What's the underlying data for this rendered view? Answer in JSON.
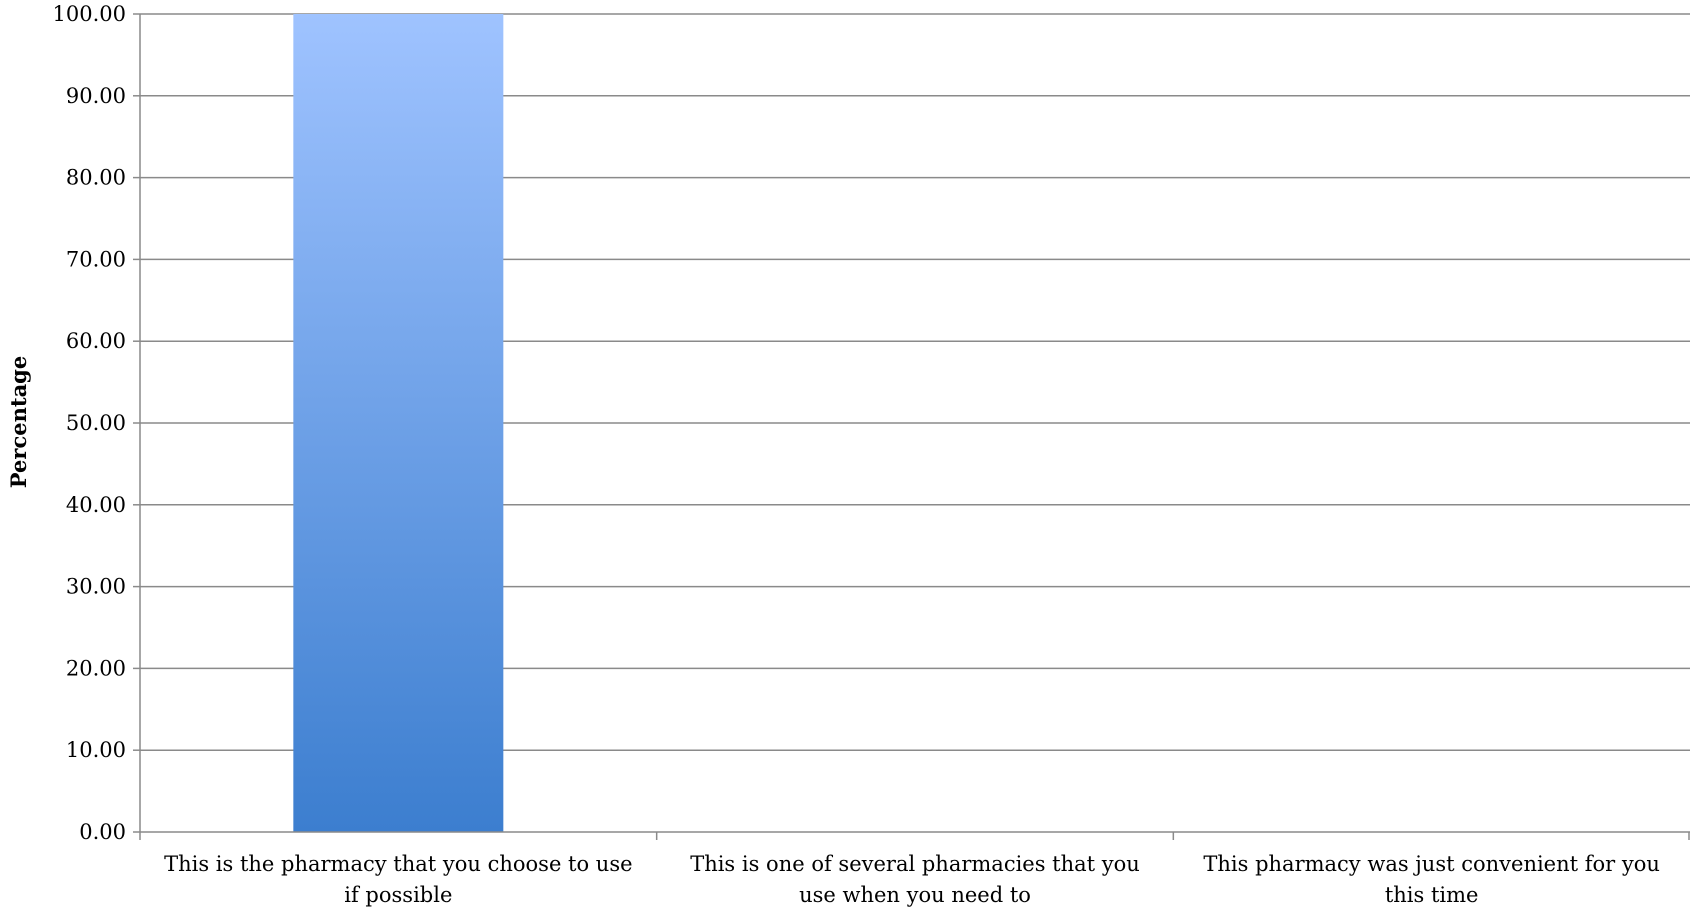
{
  "chart_data": {
    "type": "bar",
    "categories": [
      "This is the pharmacy that you choose to use if possible",
      "This is one of several pharmacies that you use when you need to",
      "This pharmacy was just convenient for you this time"
    ],
    "category_lines": [
      [
        "This is the pharmacy that you choose to use",
        "if possible"
      ],
      [
        "This is one of several pharmacies that you",
        "use when you need to"
      ],
      [
        "This pharmacy was just convenient for you",
        "this time"
      ]
    ],
    "values": [
      100,
      0,
      0
    ],
    "ylabel": "Percentage",
    "xlabel": "",
    "ylim": [
      0,
      100
    ],
    "ytick_step": 10,
    "ytick_labels": [
      "0.00",
      "10.00",
      "20.00",
      "30.00",
      "40.00",
      "50.00",
      "60.00",
      "70.00",
      "80.00",
      "90.00",
      "100.00"
    ],
    "grid": true,
    "legend": "none",
    "colors": {
      "bar_top": "#9fc3ff",
      "bar_bottom": "#3c7ecf",
      "gridline": "#8a8a8a",
      "axis": "#8a8a8a"
    }
  }
}
